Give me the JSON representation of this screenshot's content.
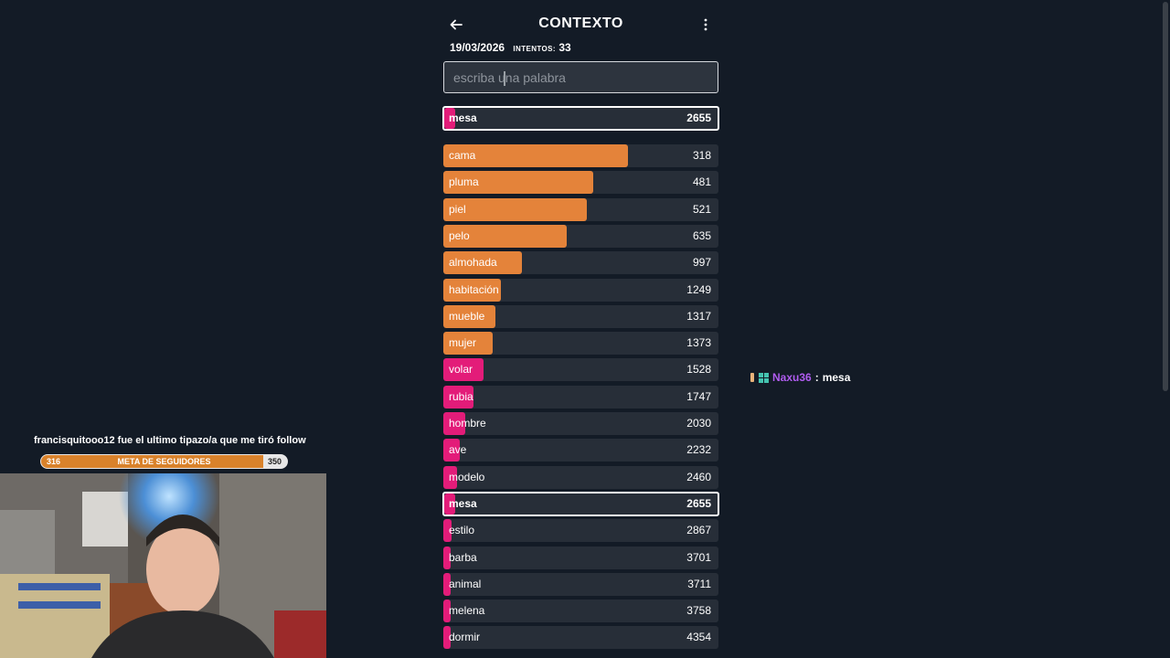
{
  "game": {
    "title": "CONTEXTO",
    "date": "19/03/2026",
    "attempts_label": "intentos:",
    "attempts": "33",
    "search_placeholder": "escriba una palabra",
    "last_guess": {
      "word": "mesa",
      "rank": "2655",
      "fraction": 0.04,
      "color": "#e31c79"
    },
    "guesses": [
      {
        "word": "cama",
        "rank": "318",
        "fraction": 0.67,
        "color": "#e4833a"
      },
      {
        "word": "pluma",
        "rank": "481",
        "fraction": 0.545,
        "color": "#e4833a"
      },
      {
        "word": "piel",
        "rank": "521",
        "fraction": 0.52,
        "color": "#e4833a"
      },
      {
        "word": "pelo",
        "rank": "635",
        "fraction": 0.45,
        "color": "#e4833a"
      },
      {
        "word": "almohada",
        "rank": "997",
        "fraction": 0.285,
        "color": "#e4833a"
      },
      {
        "word": "habitación",
        "rank": "1249",
        "fraction": 0.21,
        "color": "#e4833a"
      },
      {
        "word": "mueble",
        "rank": "1317",
        "fraction": 0.19,
        "color": "#e4833a"
      },
      {
        "word": "mujer",
        "rank": "1373",
        "fraction": 0.178,
        "color": "#e4833a"
      },
      {
        "word": "volar",
        "rank": "1528",
        "fraction": 0.145,
        "color": "#e31c79"
      },
      {
        "word": "rubia",
        "rank": "1747",
        "fraction": 0.11,
        "color": "#e31c79"
      },
      {
        "word": "hombre",
        "rank": "2030",
        "fraction": 0.08,
        "color": "#e31c79"
      },
      {
        "word": "ave",
        "rank": "2232",
        "fraction": 0.06,
        "color": "#e31c79"
      },
      {
        "word": "modelo",
        "rank": "2460",
        "fraction": 0.05,
        "color": "#e31c79"
      },
      {
        "word": "mesa",
        "rank": "2655",
        "fraction": 0.04,
        "color": "#e31c79",
        "highlight": true
      },
      {
        "word": "estilo",
        "rank": "2867",
        "fraction": 0.03,
        "color": "#e31c79"
      },
      {
        "word": "barba",
        "rank": "3701",
        "fraction": 0.02,
        "color": "#e31c79"
      },
      {
        "word": "animal",
        "rank": "3711",
        "fraction": 0.02,
        "color": "#e31c79"
      },
      {
        "word": "melena",
        "rank": "3758",
        "fraction": 0.02,
        "color": "#e31c79"
      },
      {
        "word": "dormir",
        "rank": "4354",
        "fraction": 0.015,
        "color": "#e31c79"
      }
    ]
  },
  "stream": {
    "last_follower_text": "francisquitooo12 fue el ultimo tipazo/a que me tiró follow",
    "goal": {
      "title": "META DE SEGUIDORES",
      "current": "316",
      "target": "350",
      "progress": 0.903
    },
    "chat": {
      "username": "Naxu36",
      "separator": ":",
      "message": "mesa"
    }
  },
  "icons": {
    "back": "arrow-left-icon",
    "menu": "more-vertical-icon",
    "chat_badges": [
      "hand-icon",
      "grid-badge-icon"
    ]
  }
}
